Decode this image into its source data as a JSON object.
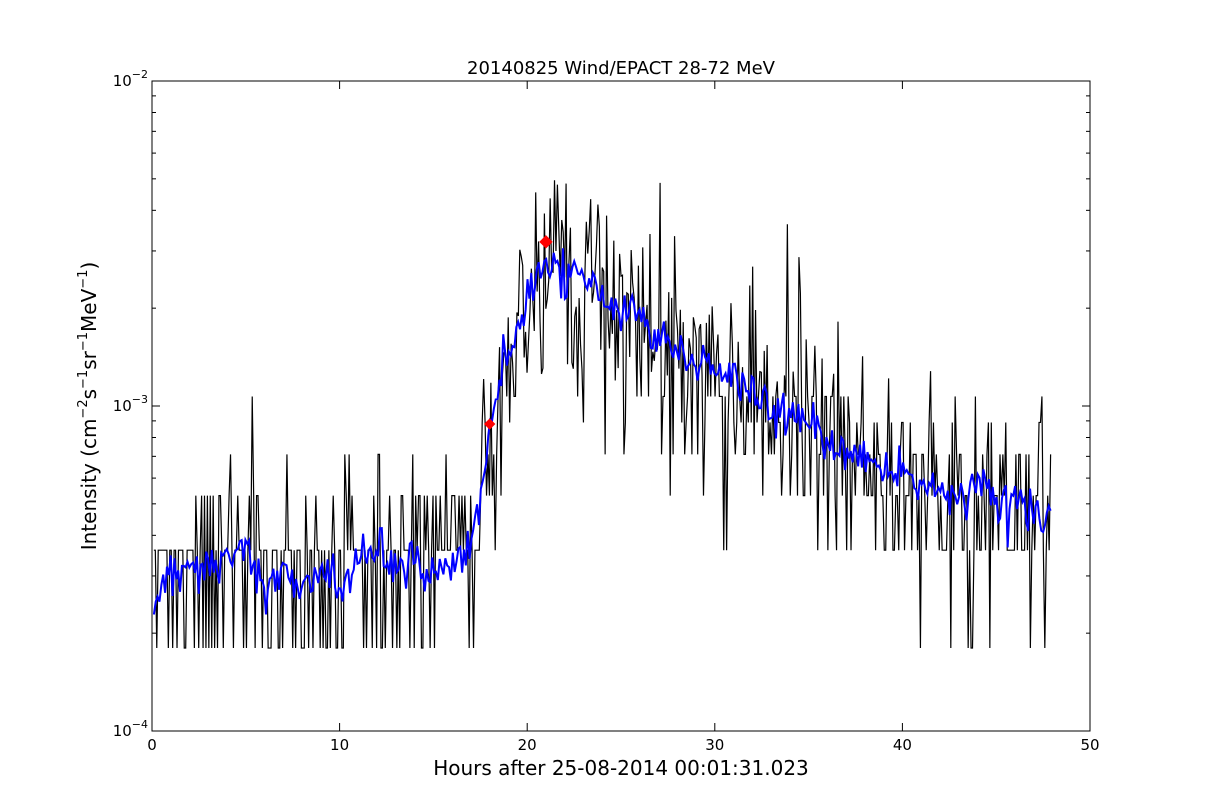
{
  "chart_data": {
    "type": "line",
    "title": "20140825 Wind/EPACT 28-72 MeV",
    "xlabel": "Hours after 25-08-2014 00:01:31.023",
    "ylabel": {
      "parts": [
        "Intensity (cm",
        "−2",
        "s",
        "−1",
        "sr",
        "−1",
        "MeV",
        "−1",
        ")"
      ]
    },
    "xlim": [
      0,
      50
    ],
    "ylim": [
      0.0001,
      0.01
    ],
    "yscale": "log",
    "grid": false,
    "x_ticks": [
      {
        "value": 0,
        "label": "0"
      },
      {
        "value": 10,
        "label": "10"
      },
      {
        "value": 20,
        "label": "20"
      },
      {
        "value": 30,
        "label": "30"
      },
      {
        "value": 40,
        "label": "40"
      },
      {
        "value": 50,
        "label": "50"
      }
    ],
    "y_ticks": [
      {
        "value": 0.0001,
        "base": "10",
        "exp": "-4"
      },
      {
        "value": 0.001,
        "base": "10",
        "exp": "-3"
      },
      {
        "value": 0.01,
        "base": "10",
        "exp": "-2"
      }
    ],
    "series": [
      {
        "style": "raw",
        "color": "#000000",
        "x_range": [
          0.1,
          47.9
        ],
        "quantization_levels": [
          0.00018,
          0.00036,
          0.00053,
          0.00071,
          0.00089,
          0.00107
        ],
        "profile": {
          "x": [
            0.1,
            4,
            8,
            12,
            15,
            17.2,
            17.9,
            18.5,
            19.5,
            20.5,
            21.0,
            22.0,
            23.5,
            25,
            27,
            29,
            31,
            33,
            35,
            37,
            39,
            41,
            43,
            45,
            47.9
          ],
          "y": [
            0.0003,
            0.00032,
            0.0003,
            0.00033,
            0.00031,
            0.00038,
            0.00065,
            0.00115,
            0.0017,
            0.0024,
            0.003,
            0.0027,
            0.0023,
            0.0021,
            0.0016,
            0.0013,
            0.0011,
            0.00095,
            0.00085,
            0.00075,
            0.00065,
            0.00055,
            0.0005,
            0.00048,
            0.00045
          ]
        }
      },
      {
        "style": "smoothed",
        "color": "#0000ff",
        "profile": {
          "x": [
            0.1,
            1,
            2,
            3,
            4,
            5,
            6,
            7,
            8,
            9,
            10,
            11,
            12,
            13,
            14,
            15,
            16,
            17,
            17.5,
            18,
            18.5,
            19,
            19.5,
            20,
            20.5,
            21,
            21.5,
            22,
            22.5,
            23,
            24,
            25,
            26,
            27,
            28,
            29,
            30,
            31,
            32,
            33,
            34,
            35,
            36,
            37,
            38,
            39,
            40,
            41,
            42,
            43,
            44,
            45,
            46,
            47,
            47.9
          ],
          "y": [
            0.00026,
            0.0003,
            0.00033,
            0.00031,
            0.00033,
            0.00036,
            0.00029,
            0.00031,
            0.00028,
            0.00031,
            0.00029,
            0.00032,
            0.00036,
            0.00031,
            0.00034,
            0.0003,
            0.00033,
            0.00036,
            0.00055,
            0.00085,
            0.0012,
            0.0015,
            0.00175,
            0.0021,
            0.0025,
            0.00285,
            0.0027,
            0.00255,
            0.0026,
            0.0024,
            0.0021,
            0.00205,
            0.0019,
            0.0016,
            0.0015,
            0.0014,
            0.0013,
            0.0012,
            0.0011,
            0.001,
            0.00095,
            0.0009,
            0.0008,
            0.0007,
            0.00072,
            0.00065,
            0.00062,
            0.00058,
            0.00055,
            0.00052,
            0.00055,
            0.0005,
            0.00052,
            0.00048,
            0.00045
          ]
        }
      }
    ],
    "markers": {
      "color": "#ff0000",
      "shape": "diamond",
      "points": [
        {
          "x": 18.0,
          "y": 0.00088
        },
        {
          "x": 21.0,
          "y": 0.0032
        }
      ]
    }
  }
}
